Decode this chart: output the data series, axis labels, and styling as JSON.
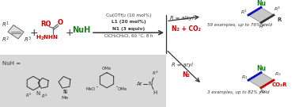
{
  "bg_color": "#ffffff",
  "gray_box_color": "#d8d8d8",
  "red": "#cc0000",
  "green": "#1a7a1a",
  "blue": "#1111bb",
  "dark": "#333333",
  "bond_color": "#666666",
  "conditions": [
    "Cu(OTf)₂ (10 mol%)",
    "L1 (20 mol%)",
    "N1 (3 equiv)",
    "ClCH₂CH₂Cl, 60 °C, 8 h"
  ],
  "alkyl_result": "59 examples, up to 76% yield",
  "aryl_result": "3 examples, up to 82% yield",
  "byproduct1": "N₂ + CO₂",
  "byproduct2": "N₂",
  "R_alkyl": "R = alkyl",
  "R_aryl": "R = aryl"
}
